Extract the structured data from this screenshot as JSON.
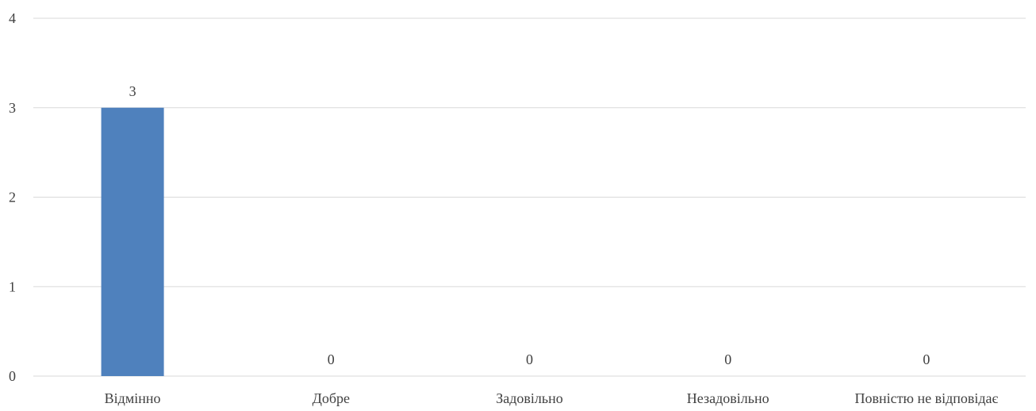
{
  "chart_data": {
    "type": "bar",
    "categories": [
      "Відмінно",
      "Добре",
      "Задовільно",
      "Незадовільно",
      "Повністю не відповідає"
    ],
    "values": [
      3,
      0,
      0,
      0,
      0
    ],
    "data_labels": [
      "3",
      "0",
      "0",
      "0",
      "0"
    ],
    "ylim": [
      0,
      4
    ],
    "yticks": [
      "0",
      "1",
      "2",
      "3",
      "4"
    ],
    "bar_color": "#4f81bd",
    "grid": true,
    "legend": "none"
  }
}
